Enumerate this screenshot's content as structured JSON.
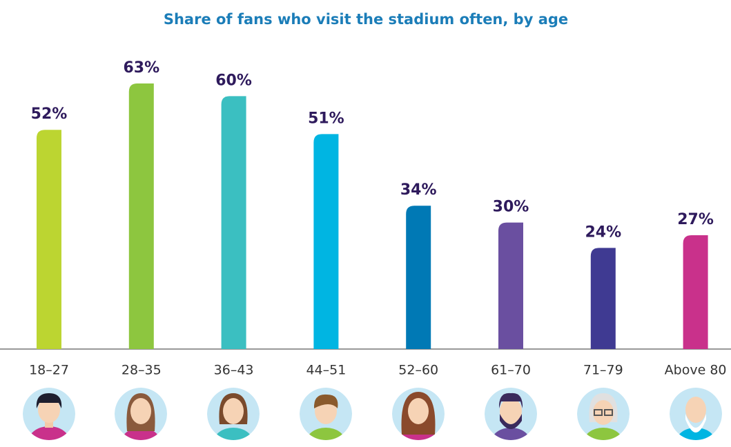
{
  "chart_data": {
    "type": "bar",
    "title": "Share of fans who visit the stadium often, by age",
    "categories": [
      "18–27",
      "28–35",
      "36–43",
      "44–51",
      "52–60",
      "61–70",
      "71–79",
      "Above 80"
    ],
    "values": [
      52,
      63,
      60,
      51,
      34,
      30,
      24,
      27
    ],
    "value_labels": [
      "52%",
      "63%",
      "60%",
      "51%",
      "34%",
      "30%",
      "24%",
      "27%"
    ],
    "colors": [
      "#bcd531",
      "#8dc63f",
      "#3bbfc1",
      "#00b5e2",
      "#0079b5",
      "#6a4fa0",
      "#3f3a92",
      "#c9318b"
    ]
  }
}
